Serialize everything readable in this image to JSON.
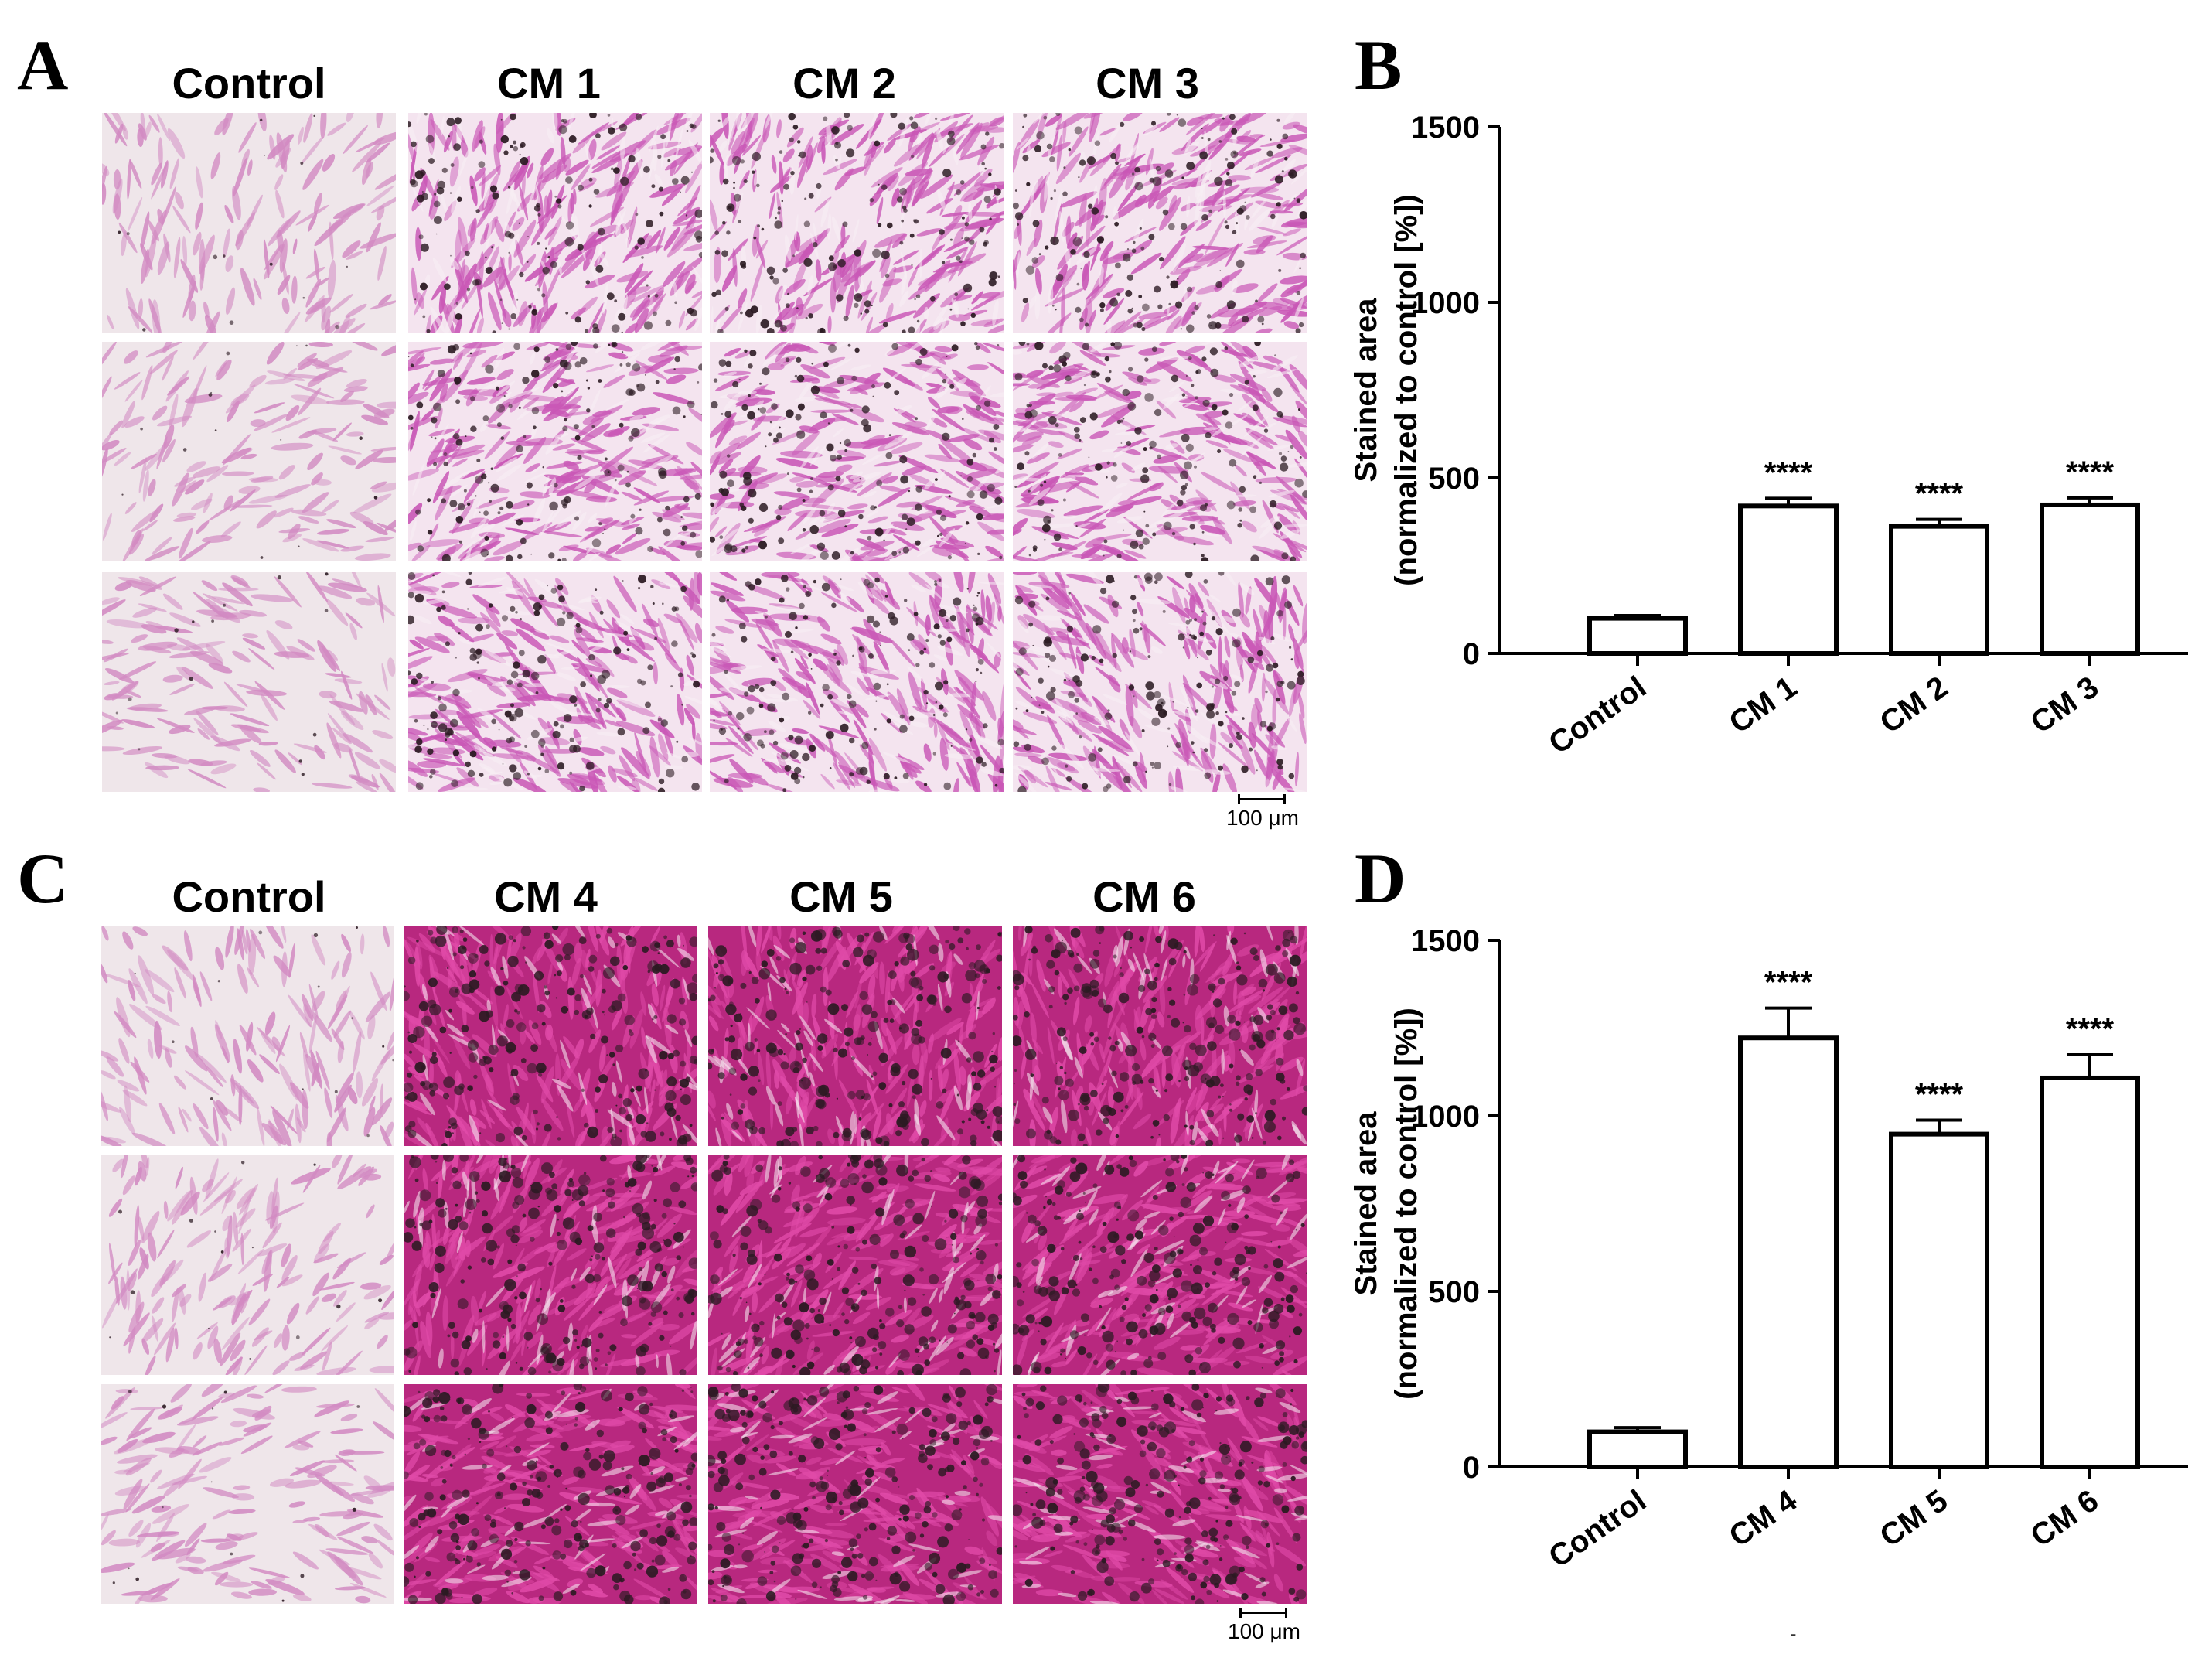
{
  "panels": {
    "A": {
      "letter": "A",
      "columns": [
        "Control",
        "CM 1",
        "CM 2",
        "CM 3"
      ],
      "scale_label": "100 μm"
    },
    "B": {
      "letter": "B"
    },
    "C": {
      "letter": "C",
      "columns": [
        "Control",
        "CM 4",
        "CM 5",
        "CM 6"
      ],
      "scale_label": "100 μm"
    },
    "D": {
      "letter": "D"
    }
  },
  "image_colors": {
    "control_bg": "#efe6ea",
    "control_cell": "#d28ac2",
    "cm_light_bg": "#f4e4ef",
    "cm_cell": "#c957b6",
    "cm_dark_bg": "#b8287f",
    "deposit": "#2b1a22"
  },
  "footnote": "-",
  "chart_data": [
    {
      "type": "bar",
      "panel": "B",
      "categories": [
        "Control",
        "CM 1",
        "CM 2",
        "CM 3"
      ],
      "values": [
        100,
        420,
        362,
        423
      ],
      "errors": [
        8,
        22,
        20,
        20
      ],
      "significance": [
        "",
        "****",
        "****",
        "****"
      ],
      "ylabel": "Stained area",
      "ylabel2": "(normalized to control [%])",
      "ylim": [
        0,
        1500
      ],
      "yticks": [
        0,
        500,
        1000,
        1500
      ],
      "bar_fill": "#ffffff",
      "bar_stroke": "#000000"
    },
    {
      "type": "bar",
      "panel": "D",
      "categories": [
        "Control",
        "CM 4",
        "CM 5",
        "CM 6"
      ],
      "values": [
        100,
        1222,
        948,
        1108
      ],
      "errors": [
        12,
        85,
        40,
        66
      ],
      "significance": [
        "",
        "****",
        "****",
        "****"
      ],
      "ylabel": "Stained area",
      "ylabel2": "(normalized to control [%])",
      "ylim": [
        0,
        1500
      ],
      "yticks": [
        0,
        500,
        1000,
        1500
      ],
      "bar_fill": "#ffffff",
      "bar_stroke": "#000000"
    }
  ]
}
